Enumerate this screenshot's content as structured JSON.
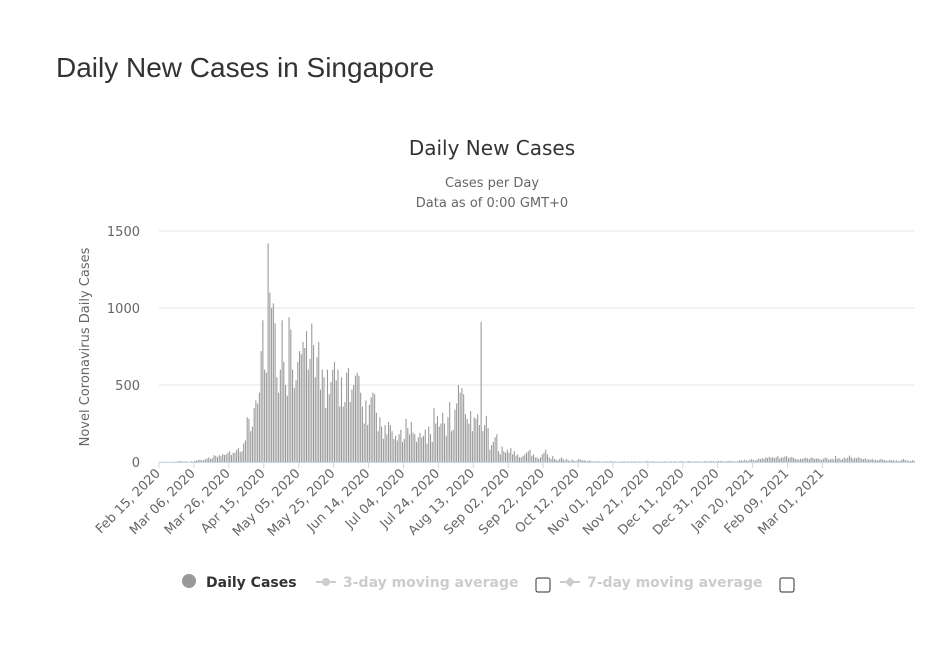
{
  "page": {
    "title": "Daily New Cases in Singapore"
  },
  "colors": {
    "bar": "#999999",
    "grid": "#e6e6e6",
    "axis_line": "#ccd6eb",
    "inactive": "#cccccc"
  },
  "chart_data": {
    "type": "bar",
    "title": "Daily New Cases",
    "subtitle_lines": [
      "Cases per Day",
      "Data as of 0:00 GMT+0"
    ],
    "xlabel": "",
    "ylabel": "Novel Coronavirus Daily Cases",
    "ylim": [
      0,
      1500
    ],
    "yticks": [
      0,
      500,
      1000,
      1500
    ],
    "grid": true,
    "x_tick_labels": [
      "Feb 15, 2020",
      "Mar 06, 2020",
      "Mar 26, 2020",
      "Apr 15, 2020",
      "May 05, 2020",
      "May 25, 2020",
      "Jun 14, 2020",
      "Jul 04, 2020",
      "Jul 24, 2020",
      "Aug 13, 2020",
      "Sep 02, 2020",
      "Sep 22, 2020",
      "Oct 12, 2020",
      "Nov 01, 2020",
      "Nov 21, 2020",
      "Dec 11, 2020",
      "Dec 31, 2020",
      "Jan 20, 2021",
      "Feb 09, 2021",
      "Mar 01, 2021"
    ],
    "x_tick_interval_days": 20,
    "first_day": "Feb 15, 2020",
    "series": [
      {
        "name": "Daily Cases",
        "active": true,
        "values": [
          2,
          1,
          0,
          2,
          1,
          0,
          1,
          0,
          2,
          1,
          3,
          5,
          6,
          2,
          3,
          4,
          2,
          0,
          5,
          3,
          7,
          9,
          12,
          15,
          10,
          12,
          17,
          23,
          30,
          20,
          25,
          44,
          40,
          32,
          45,
          40,
          52,
          45,
          50,
          60,
          70,
          45,
          60,
          60,
          80,
          90,
          65,
          70,
          120,
          140,
          290,
          280,
          200,
          230,
          350,
          400,
          380,
          450,
          720,
          920,
          600,
          580,
          1420,
          1100,
          1000,
          1030,
          900,
          550,
          450,
          600,
          920,
          650,
          500,
          430,
          940,
          860,
          600,
          480,
          530,
          650,
          720,
          700,
          780,
          740,
          850,
          600,
          670,
          900,
          760,
          550,
          680,
          780,
          470,
          600,
          550,
          350,
          600,
          440,
          520,
          600,
          650,
          530,
          600,
          360,
          550,
          360,
          390,
          580,
          610,
          390,
          470,
          500,
          560,
          580,
          560,
          450,
          360,
          250,
          400,
          240,
          370,
          420,
          450,
          440,
          320,
          200,
          290,
          230,
          150,
          240,
          180,
          260,
          240,
          200,
          150,
          170,
          140,
          180,
          210,
          130,
          150,
          280,
          220,
          180,
          260,
          190,
          180,
          130,
          160,
          190,
          160,
          170,
          210,
          120,
          230,
          180,
          130,
          350,
          250,
          300,
          230,
          250,
          320,
          250,
          170,
          290,
          390,
          200,
          210,
          340,
          380,
          500,
          450,
          480,
          440,
          310,
          280,
          250,
          330,
          200,
          290,
          280,
          310,
          240,
          910,
          200,
          240,
          300,
          220,
          80,
          110,
          130,
          160,
          180,
          70,
          50,
          100,
          70,
          60,
          80,
          60,
          90,
          50,
          70,
          40,
          50,
          30,
          30,
          40,
          50,
          60,
          70,
          80,
          40,
          50,
          30,
          30,
          20,
          30,
          50,
          60,
          80,
          50,
          30,
          20,
          40,
          20,
          15,
          10,
          20,
          30,
          20,
          10,
          20,
          10,
          5,
          15,
          10,
          5,
          10,
          20,
          15,
          10,
          12,
          8,
          5,
          10,
          6,
          4,
          3,
          5,
          5,
          4,
          2,
          3,
          3,
          5,
          2,
          6,
          4,
          3,
          3,
          2,
          1,
          4,
          3,
          5,
          2,
          4,
          2,
          3,
          3,
          5,
          2,
          3,
          4,
          3,
          2,
          4,
          7,
          3,
          2,
          5,
          3,
          2,
          4,
          1,
          3,
          2,
          3,
          5,
          1,
          3,
          4,
          2,
          6,
          2,
          3,
          4,
          5,
          3,
          2,
          3,
          6,
          4,
          3,
          2,
          5,
          3,
          4,
          2,
          3,
          5,
          4,
          3,
          6,
          4,
          5,
          3,
          4,
          7,
          5,
          6,
          4,
          3,
          5,
          8,
          6,
          5,
          4,
          3,
          6,
          10,
          12,
          8,
          15,
          9,
          7,
          14,
          20,
          12,
          10,
          15,
          22,
          18,
          25,
          20,
          30,
          26,
          34,
          28,
          32,
          25,
          30,
          38,
          22,
          30,
          28,
          35,
          40,
          24,
          30,
          33,
          26,
          20,
          18,
          16,
          22,
          20,
          25,
          28,
          24,
          18,
          30,
          26,
          20,
          22,
          24,
          18,
          12,
          20,
          28,
          26,
          14,
          18,
          22,
          16,
          40,
          20,
          25,
          15,
          18,
          30,
          22,
          28,
          42,
          30,
          20,
          28,
          24,
          32,
          26,
          20,
          18,
          24,
          16,
          18,
          14,
          20,
          12,
          15,
          10,
          14,
          20,
          16,
          12,
          10,
          8,
          14,
          10,
          12,
          8,
          10,
          6,
          8,
          15,
          20,
          12,
          10,
          8,
          6,
          12,
          9
        ]
      },
      {
        "name": "3-day moving average",
        "active": false
      },
      {
        "name": "7-day moving average",
        "active": false
      }
    ]
  }
}
